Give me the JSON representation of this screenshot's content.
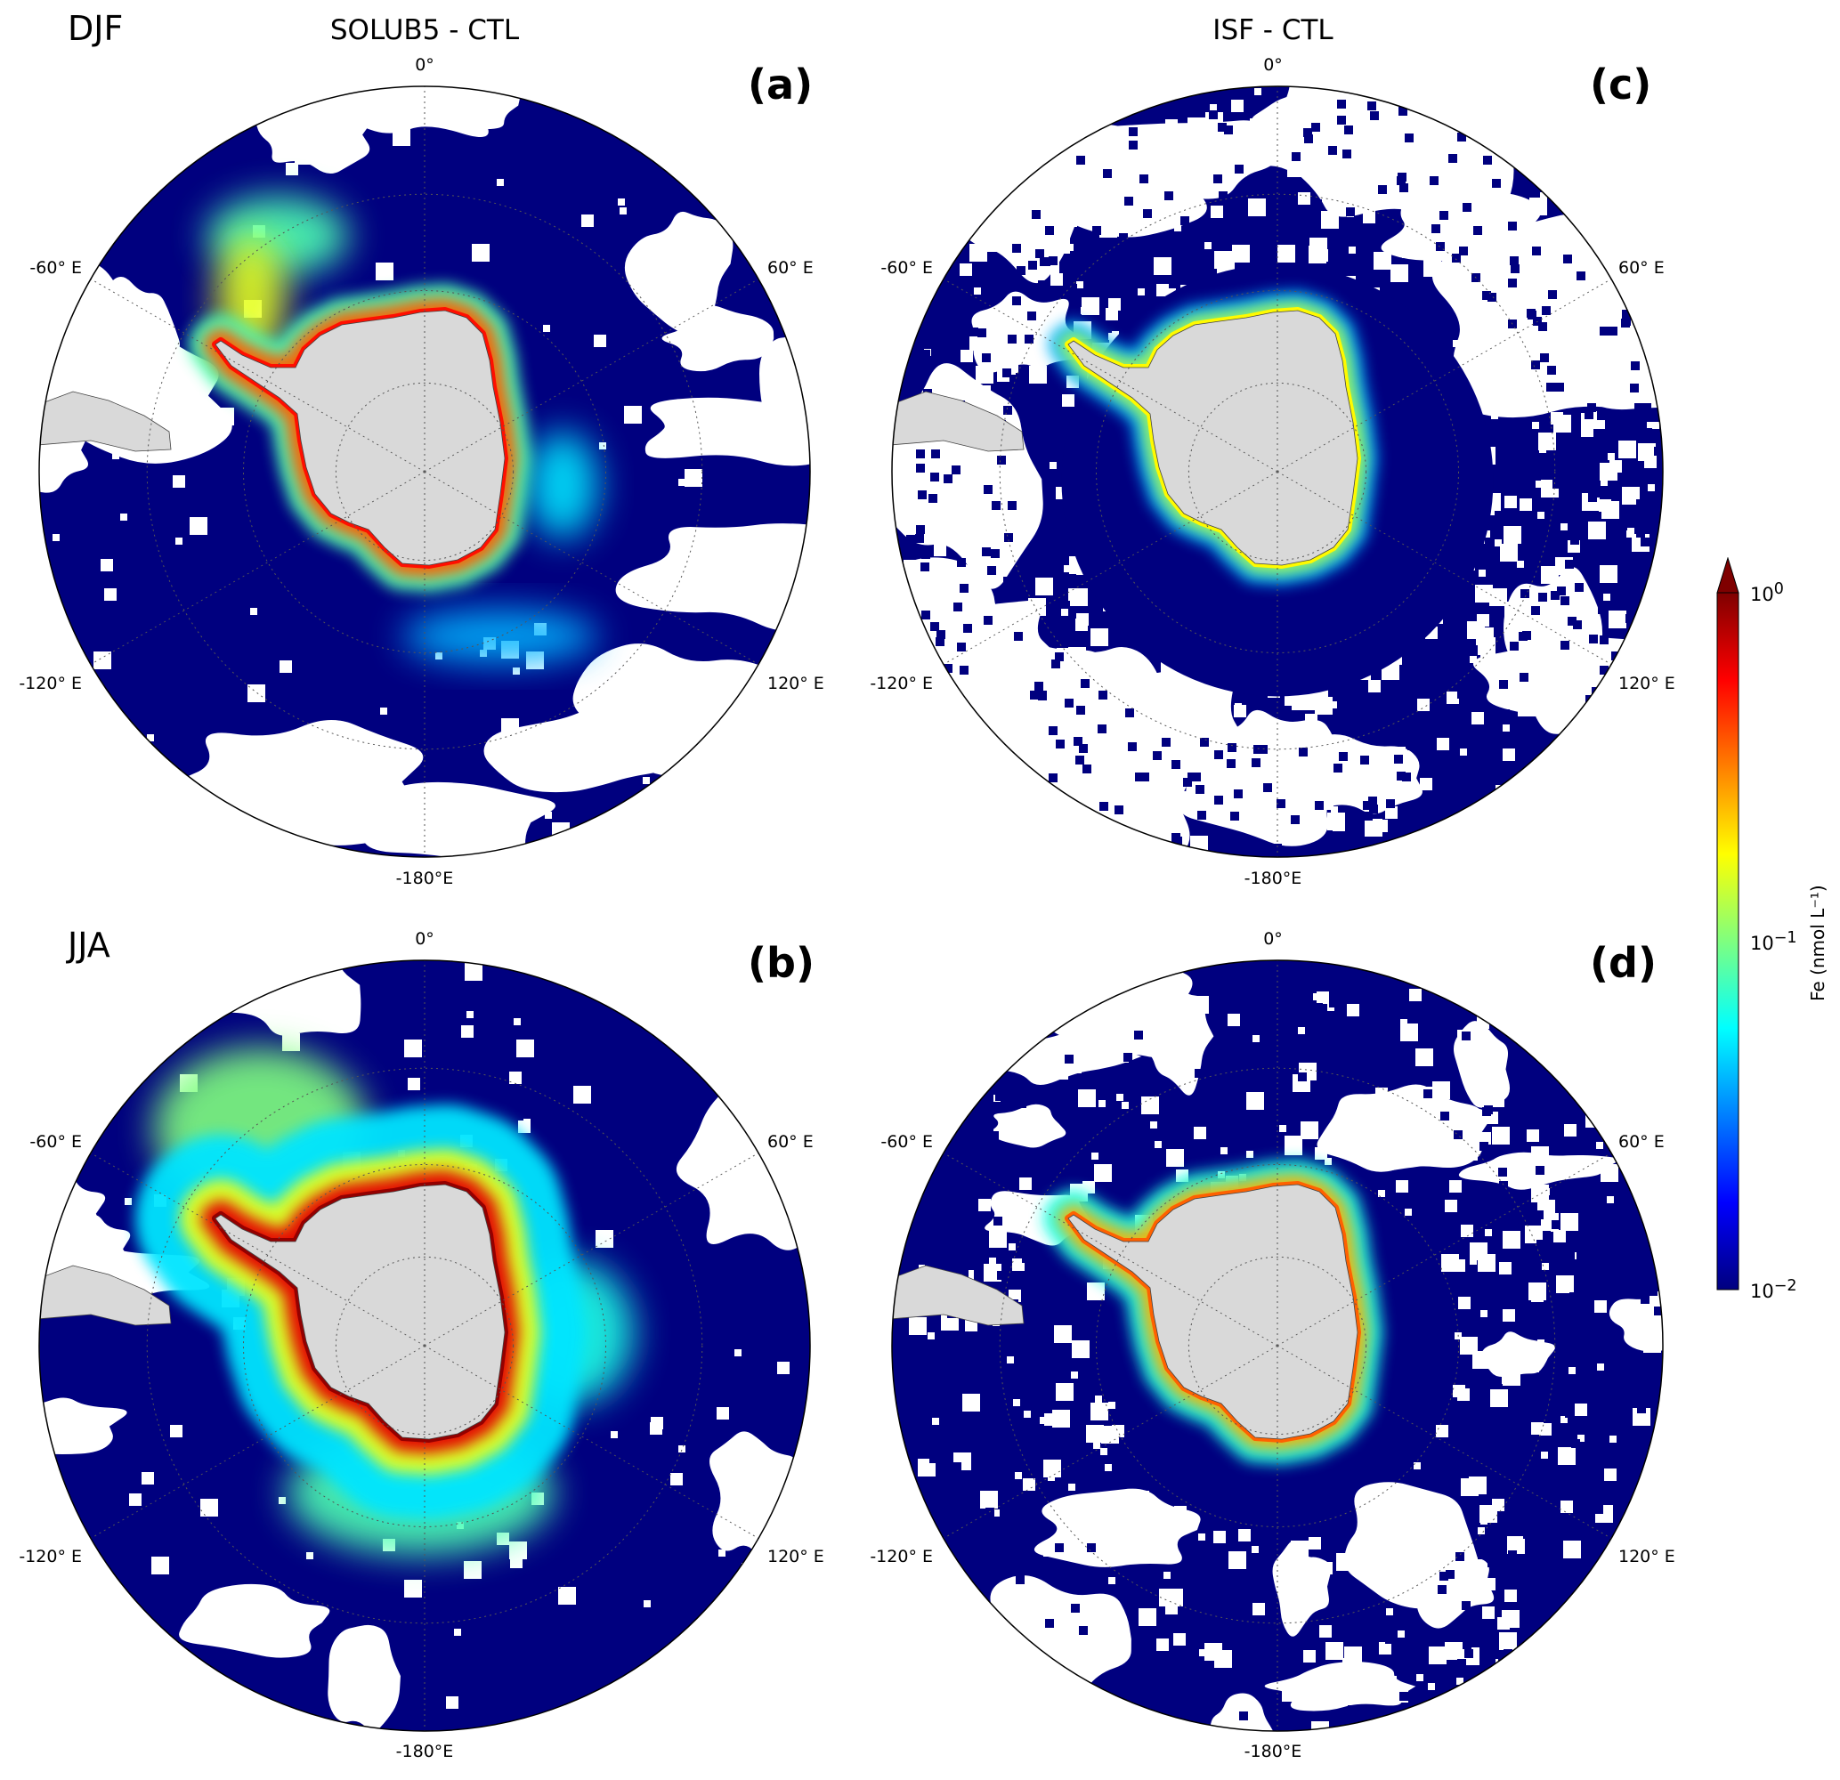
{
  "figure": {
    "column_titles": [
      "SOLUB5 - CTL",
      "ISF - CTL"
    ],
    "row_titles": [
      "DJF",
      "JJA"
    ],
    "panels": [
      {
        "letter": "(a)",
        "season": "DJF",
        "experiment": "SOLUB5 - CTL",
        "pattern": "solub_djf"
      },
      {
        "letter": "(b)",
        "season": "JJA",
        "experiment": "SOLUB5 - CTL",
        "pattern": "solub_jja"
      },
      {
        "letter": "(c)",
        "season": "DJF",
        "experiment": "ISF - CTL",
        "pattern": "isf_djf"
      },
      {
        "letter": "(d)",
        "season": "JJA",
        "experiment": "ISF - CTL",
        "pattern": "isf_jja"
      }
    ],
    "longitude_labels": {
      "top": "0°",
      "bottom": "-180°E",
      "upper_left": "-60° E",
      "upper_right": "60° E",
      "lower_left": "-120° E",
      "lower_right": "120° E"
    },
    "projection": "south polar stereographic",
    "land_color": "#d9d9d9",
    "ocean_zero_color": "#ffffff"
  },
  "colorbar": {
    "label": "Fe (nmol L⁻¹)",
    "scale": "log",
    "min": 0.01,
    "max": 1,
    "extend": "max",
    "colormap": "jet",
    "ticks": [
      {
        "value": 1,
        "base": "10",
        "exp": "0"
      },
      {
        "value": 0.1,
        "base": "10",
        "exp": "−1"
      },
      {
        "value": 0.01,
        "base": "10",
        "exp": "−2"
      }
    ],
    "colors": [
      "#00007f",
      "#0000ff",
      "#007fff",
      "#00ffff",
      "#7fff7f",
      "#ffff00",
      "#ff7f00",
      "#ff0000",
      "#7f0000"
    ]
  }
}
